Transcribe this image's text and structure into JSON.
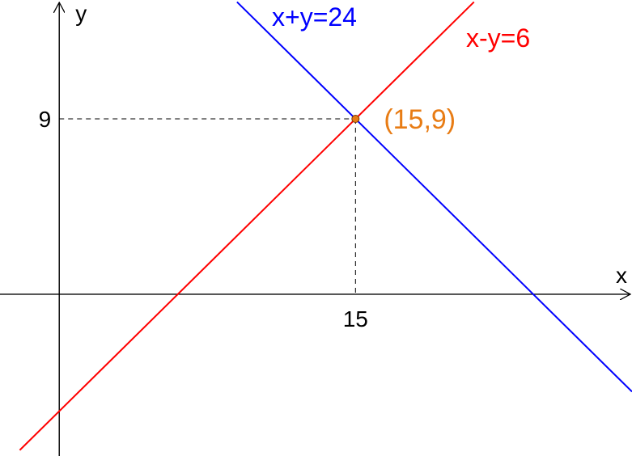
{
  "chart_data": {
    "type": "line",
    "xlabel": "x",
    "ylabel": "y",
    "xlim": [
      -3,
      29
    ],
    "ylim": [
      -8.3,
      15.1
    ],
    "x_ticks": [
      {
        "value": 15,
        "label": "15"
      }
    ],
    "y_ticks": [
      {
        "value": 9,
        "label": "9"
      }
    ],
    "series": [
      {
        "name": "x+y=24",
        "color": "#0000ff",
        "x": [
          9,
          29
        ],
        "y": [
          15,
          -5
        ]
      },
      {
        "name": "x-y=6",
        "color": "#ff0000",
        "x": [
          -2,
          21
        ],
        "y": [
          -8,
          15
        ]
      }
    ],
    "intersection": {
      "label": "(15,9)",
      "x": 15,
      "y": 9,
      "color": "#e87c14"
    }
  }
}
